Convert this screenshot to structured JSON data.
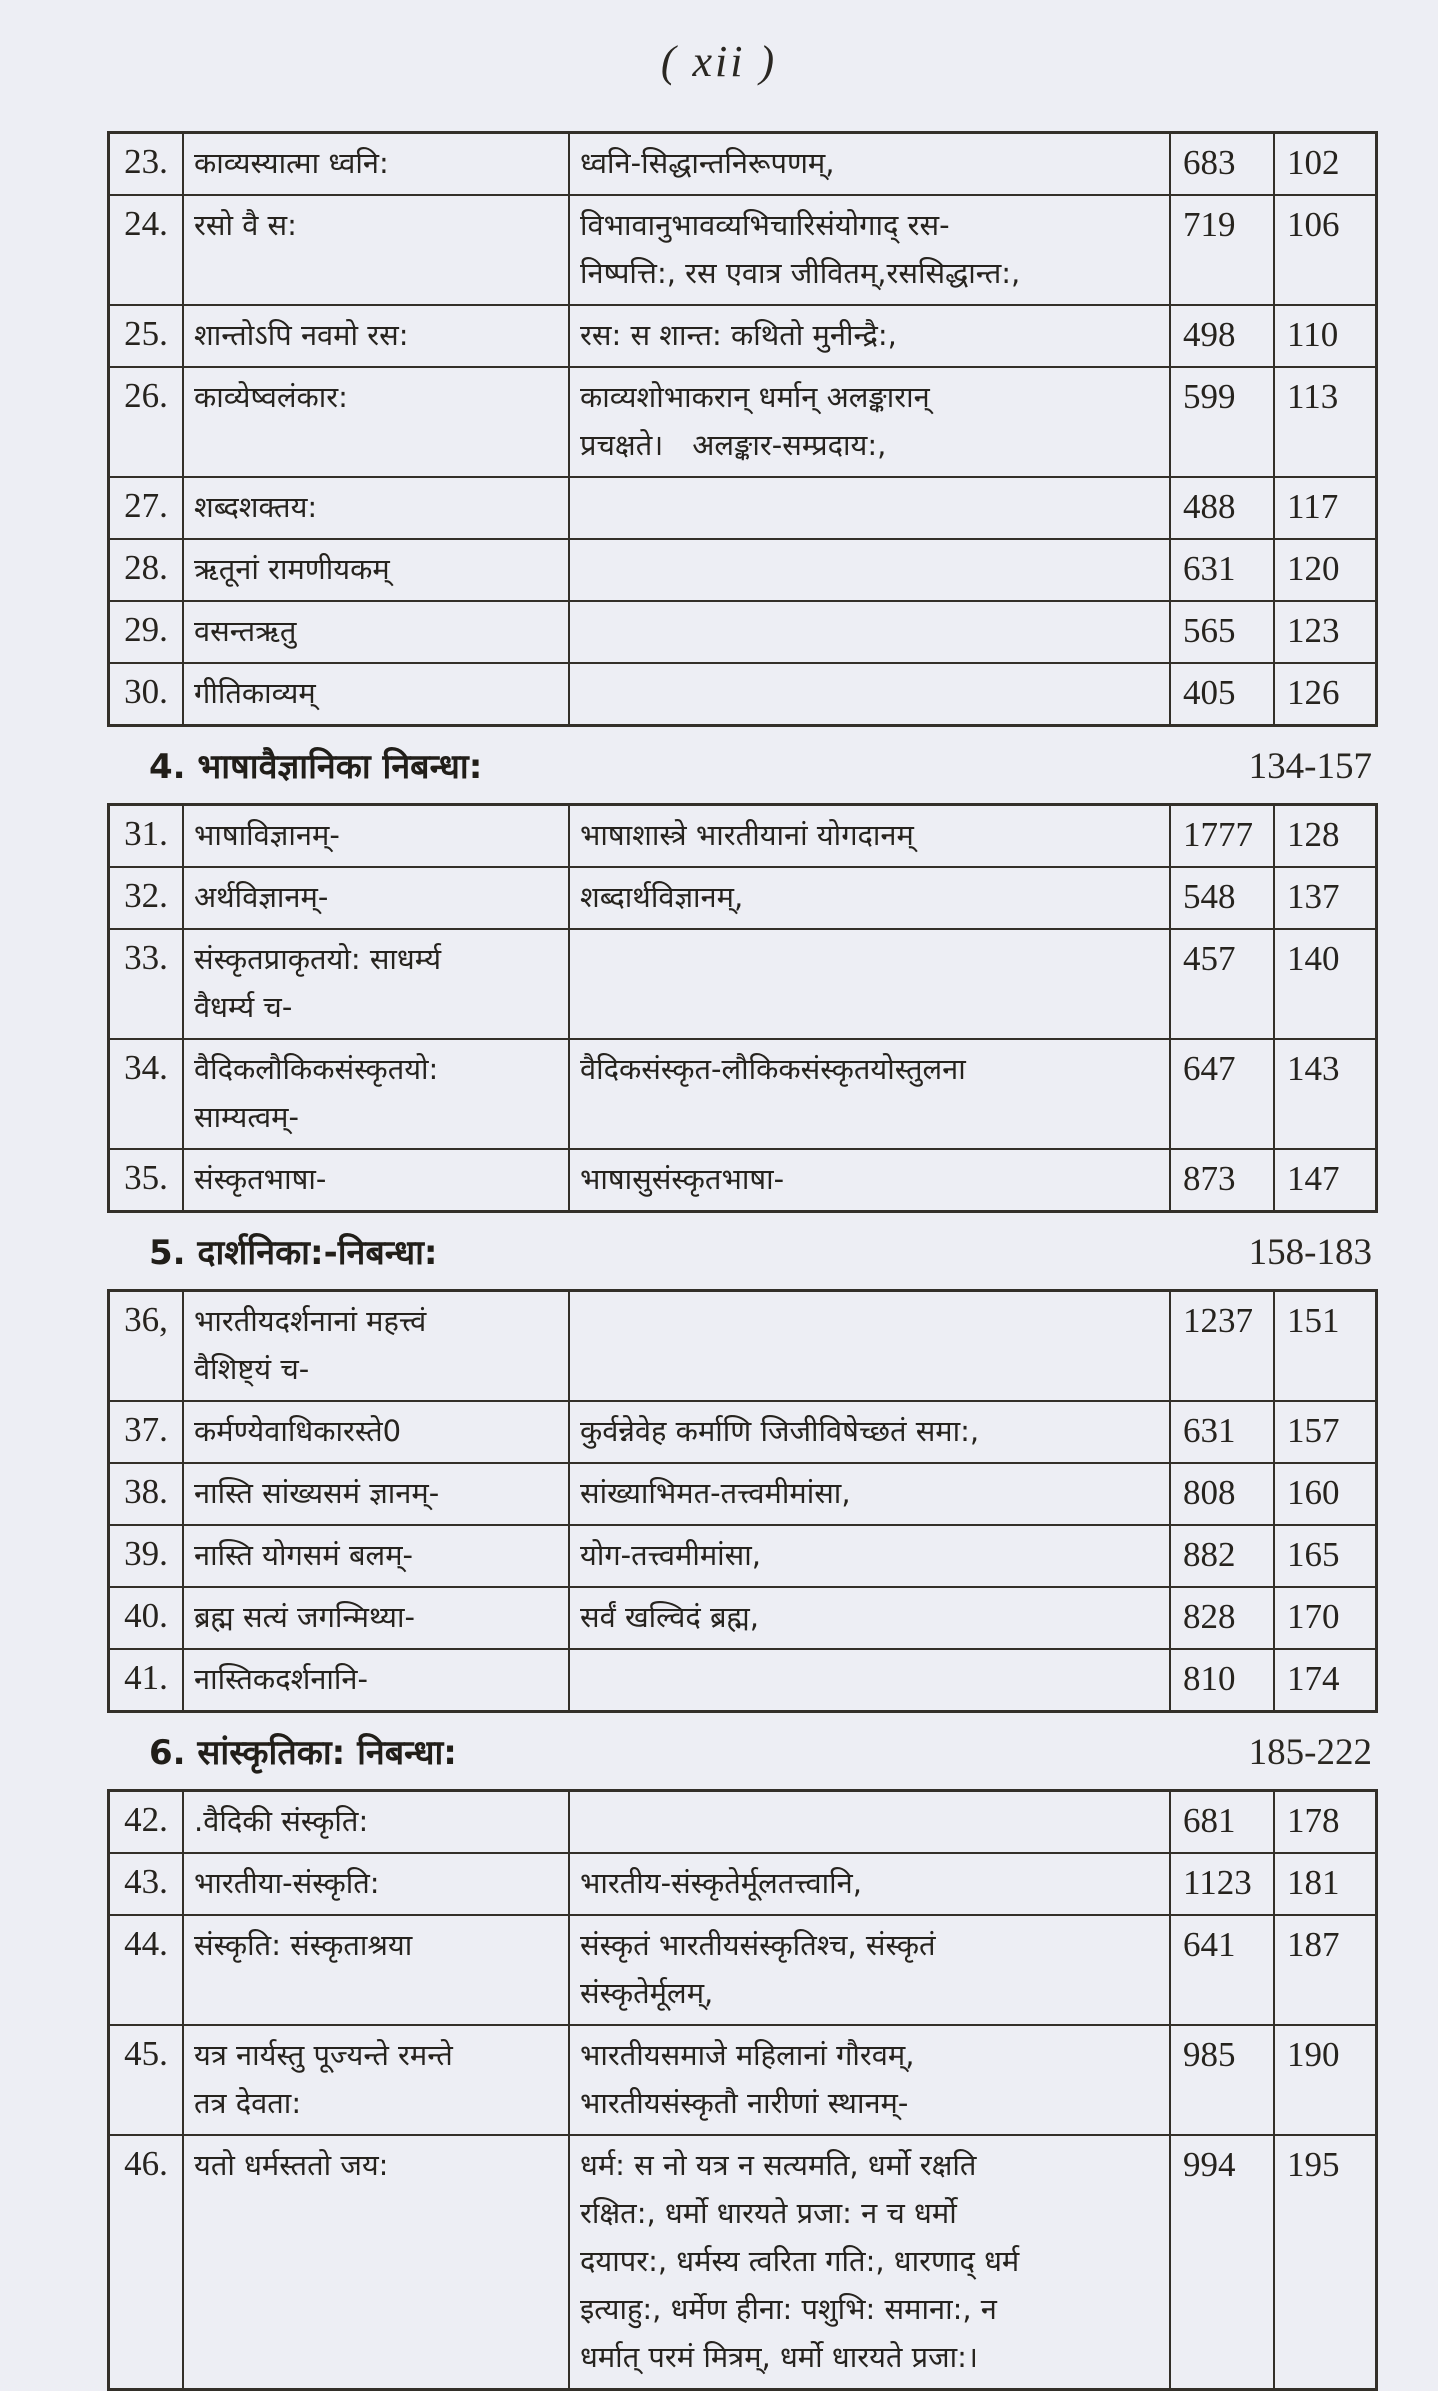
{
  "page": {
    "header_label": "( xii )",
    "colors": {
      "paper": "#edeef4",
      "ink": "#26231e",
      "table_border": "#332f29"
    }
  },
  "sections": [
    {
      "header": null,
      "rows": [
        {
          "num": "23.",
          "title": [
            "काव्यस्यात्मा ध्वनि:"
          ],
          "desc": [
            "ध्वनि-सिद्धान्तनिरूपणम्,"
          ],
          "words": "683",
          "page": "102"
        },
        {
          "num": "24.",
          "title": [
            "रसो वै स:"
          ],
          "desc": [
            "विभावानुभावव्यभिचारिसंयोगाद् रस-",
            "निष्पत्ति:, रस एवात्र जीवितम्,रससिद्धान्त:,"
          ],
          "words": "719",
          "page": "106"
        },
        {
          "num": "25.",
          "title": [
            "शान्तोऽपि नवमो रस:"
          ],
          "desc": [
            "रस: स शान्त: कथितो मुनीन्द्रै:,"
          ],
          "words": "498",
          "page": "110"
        },
        {
          "num": "26.",
          "title": [
            "काव्येष्वलंकार:"
          ],
          "desc": [
            "काव्यशोभाकरान् धर्मान् अलङ्कारान्",
            "प्रचक्षते। अलङ्कार-सम्प्रदाय:,"
          ],
          "words": "599",
          "page": "113"
        },
        {
          "num": "27.",
          "title": [
            "शब्दशक्तय:"
          ],
          "desc": [],
          "words": "488",
          "page": "117"
        },
        {
          "num": "28.",
          "title": [
            "ऋतूनां रामणीयकम्"
          ],
          "desc": [],
          "words": "631",
          "page": "120"
        },
        {
          "num": "29.",
          "title": [
            "वसन्तऋतु"
          ],
          "desc": [],
          "words": "565",
          "page": "123"
        },
        {
          "num": "30.",
          "title": [
            "गीतिकाव्यम्"
          ],
          "desc": [],
          "words": "405",
          "page": "126"
        }
      ]
    },
    {
      "header": {
        "label": "4. भाषावैज्ञानिका निबन्धा:",
        "range": "134-157"
      },
      "rows": [
        {
          "num": "31.",
          "title": [
            "भाषाविज्ञानम्-"
          ],
          "desc": [
            "भाषाशास्त्रे भारतीयानां योगदानम्"
          ],
          "words": "1777",
          "page": "128"
        },
        {
          "num": "32.",
          "title": [
            "अर्थविज्ञानम्-"
          ],
          "desc": [
            "शब्दार्थविज्ञानम्,"
          ],
          "words": "548",
          "page": "137"
        },
        {
          "num": "33.",
          "title": [
            "संस्कृतप्राकृतयो: साधर्म्य",
            "वैधर्म्य च-"
          ],
          "desc": [],
          "words": "457",
          "page": "140"
        },
        {
          "num": "34.",
          "title": [
            "वैदिकलौकिकसंस्कृतयो:",
            "साम्यत्वम्-"
          ],
          "desc": [
            "वैदिकसंस्कृत-लौकिकसंस्कृतयोस्तुलना"
          ],
          "words": "647",
          "page": "143"
        },
        {
          "num": "35.",
          "title": [
            "संस्कृतभाषा-"
          ],
          "desc": [
            "भाषासुसंस्कृतभाषा-"
          ],
          "words": "873",
          "page": "147"
        }
      ]
    },
    {
      "header": {
        "label": "5. दार्शनिका:-निबन्धा:",
        "range": "158-183"
      },
      "rows": [
        {
          "num": "36,",
          "title": [
            "भारतीयदर्शनानां महत्त्वं",
            "वैशिष्ट्यं च-"
          ],
          "desc": [],
          "words": "1237",
          "page": "151"
        },
        {
          "num": "37.",
          "title": [
            "कर्मण्येवाधिकारस्ते0"
          ],
          "desc": [
            "कुर्वन्नेवेह कर्माणि जिजीविषेच्छतं समा:,"
          ],
          "words": "631",
          "page": "157"
        },
        {
          "num": "38.",
          "title": [
            "नास्ति सांख्यसमं ज्ञानम्-"
          ],
          "desc": [
            "सांख्याभिमत-तत्त्वमीमांसा,"
          ],
          "words": "808",
          "page": "160"
        },
        {
          "num": "39.",
          "title": [
            "नास्ति योगसमं बलम्-"
          ],
          "desc": [
            "योग-तत्त्वमीमांसा,"
          ],
          "words": "882",
          "page": "165"
        },
        {
          "num": "40.",
          "title": [
            "ब्रह्म सत्यं जगन्मिथ्या-"
          ],
          "desc": [
            "सर्वं खल्विदं ब्रह्म,"
          ],
          "words": "828",
          "page": "170"
        },
        {
          "num": "41.",
          "title": [
            "नास्तिकदर्शनानि-"
          ],
          "desc": [],
          "words": "810",
          "page": "174"
        }
      ]
    },
    {
      "header": {
        "label": "6. सांस्कृतिका: निबन्धा:",
        "range": "185-222"
      },
      "rows": [
        {
          "num": "42.",
          "title": [
            ".वैदिकी संस्कृति:"
          ],
          "desc": [],
          "words": "681",
          "page": "178"
        },
        {
          "num": "43.",
          "title": [
            "भारतीया-संस्कृति:"
          ],
          "desc": [
            "भारतीय-संस्कृतेर्मूलतत्त्वानि,"
          ],
          "words": "1123",
          "page": "181"
        },
        {
          "num": "44.",
          "title": [
            "संस्कृति: संस्कृताश्रया"
          ],
          "desc": [
            "संस्कृतं भारतीयसंस्कृतिश्च, संस्कृतं",
            "संस्कृतेर्मूलम्,"
          ],
          "words": "641",
          "page": "187"
        },
        {
          "num": "45.",
          "title": [
            "यत्र नार्यस्तु पूज्यन्ते रमन्ते",
            "तत्र देवता:"
          ],
          "desc": [
            "भारतीयसमाजे महिलानां गौरवम्,",
            "भारतीयसंस्कृतौ नारीणां स्थानम्-"
          ],
          "words": "985",
          "page": "190"
        },
        {
          "num": "46.",
          "title": [
            "यतो धर्मस्ततो जय:"
          ],
          "desc": [
            "धर्म: स नो यत्र न सत्यमति, धर्मो रक्षति",
            "रक्षित:, धर्मो धारयते प्रजा: न च धर्मो",
            "दयापर:, धर्मस्य त्वरिता गति:, धारणाद् धर्म",
            "इत्याहु:, धर्मेण हीना: पशुभि: समाना:, न",
            "धर्मात् परमं मित्रम्, धर्मो धारयते प्रजा:।"
          ],
          "words": "994",
          "page": "195"
        }
      ]
    }
  ]
}
